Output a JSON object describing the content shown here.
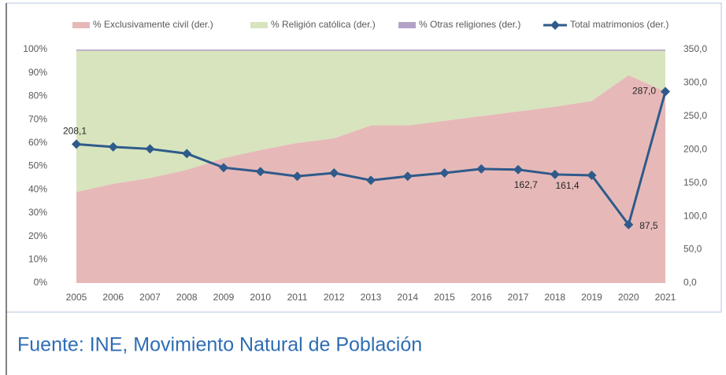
{
  "chart_data": {
    "type": "area-line",
    "categories": [
      "2005",
      "2006",
      "2007",
      "2008",
      "2009",
      "2010",
      "2011",
      "2012",
      "2013",
      "2014",
      "2015",
      "2016",
      "2017",
      "2018",
      "2019",
      "2020",
      "2021"
    ],
    "series": [
      {
        "name": "% Exclusivamente civil (der.)",
        "color": "#e6b9b8",
        "kind": "area",
        "values": [
          39,
          42.5,
          45,
          48.5,
          53.5,
          57,
          60,
          62,
          67.5,
          67.5,
          69.5,
          71.5,
          73.5,
          75.5,
          78,
          89,
          82
        ]
      },
      {
        "name": "% Religión católica (der.)",
        "color": "#d7e4bd",
        "kind": "area",
        "values": [
          60.5,
          57,
          54.5,
          51,
          46,
          42.5,
          39.5,
          37.5,
          32,
          32,
          30,
          28,
          26,
          24,
          21.5,
          10.5,
          17.5
        ]
      },
      {
        "name": "% Otras religiones (der.)",
        "color": "#b3a2c7",
        "kind": "area",
        "values": [
          0.5,
          0.5,
          0.5,
          0.5,
          0.5,
          0.5,
          0.5,
          0.5,
          0.5,
          0.5,
          0.5,
          0.5,
          0.5,
          0.5,
          0.5,
          0.5,
          0.5
        ]
      },
      {
        "name": "Total matrimonios (der.)",
        "color": "#2f5a8b",
        "kind": "line",
        "axis": "y2",
        "values": [
          208.1,
          204,
          201,
          194,
          173,
          167,
          160,
          165,
          154,
          160,
          165,
          171,
          170,
          162.7,
          161.4,
          87.5,
          287.0
        ],
        "value_labels": [
          "208,1",
          null,
          null,
          null,
          null,
          null,
          null,
          null,
          null,
          null,
          null,
          null,
          null,
          "162,7",
          "161,4",
          "87,5",
          "287,0"
        ]
      }
    ],
    "ylim": [
      0,
      100
    ],
    "yticks": [
      {
        "value": 0,
        "label": "0%"
      },
      {
        "value": 10,
        "label": "10%"
      },
      {
        "value": 20,
        "label": "20%"
      },
      {
        "value": 30,
        "label": "30%"
      },
      {
        "value": 40,
        "label": "40%"
      },
      {
        "value": 50,
        "label": "50%"
      },
      {
        "value": 60,
        "label": "60%"
      },
      {
        "value": 70,
        "label": "70%"
      },
      {
        "value": 80,
        "label": "80%"
      },
      {
        "value": 90,
        "label": "90%"
      },
      {
        "value": 100,
        "label": "100%"
      }
    ],
    "y2lim": [
      0,
      350
    ],
    "y2ticks": [
      {
        "value": 0,
        "label": "0,0"
      },
      {
        "value": 50,
        "label": "50,0"
      },
      {
        "value": 100,
        "label": "100,0"
      },
      {
        "value": 150,
        "label": "150,0"
      },
      {
        "value": 200,
        "label": "200,0"
      },
      {
        "value": 250,
        "label": "250,0"
      },
      {
        "value": 300,
        "label": "300,0"
      },
      {
        "value": 350,
        "label": "350,0"
      }
    ],
    "source": "Fuente: INE, Movimiento Natural de Población"
  }
}
